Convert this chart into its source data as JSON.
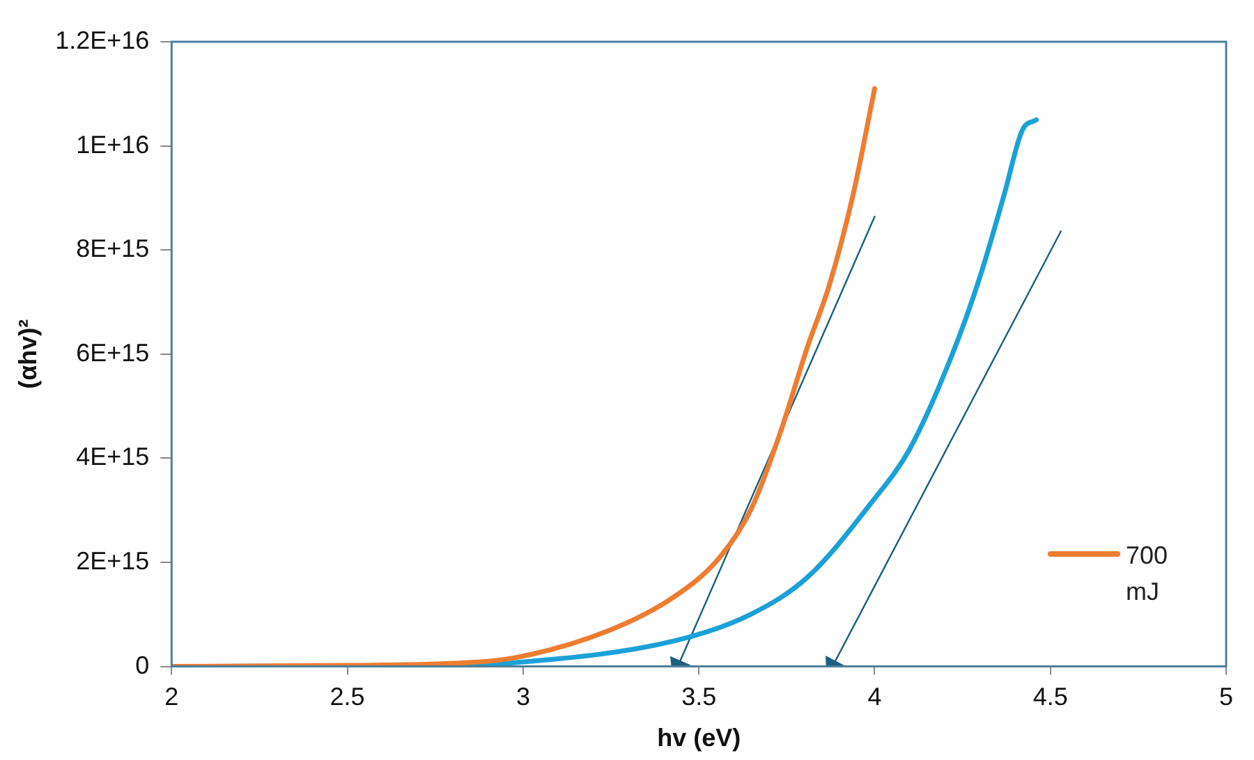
{
  "chart_data": {
    "type": "line",
    "xlabel": "hv (eV)",
    "ylabel": "(αhv)²",
    "xlim": [
      2,
      5
    ],
    "xticks": [
      2,
      2.5,
      3,
      3.5,
      4,
      4.5,
      5
    ],
    "ylim": [
      0,
      1.2e+16
    ],
    "yticks": [
      {
        "value": 0,
        "label": "0"
      },
      {
        "value": 2000000000000000.0,
        "label": "2E+15"
      },
      {
        "value": 4000000000000000.0,
        "label": "4E+15"
      },
      {
        "value": 6000000000000000.0,
        "label": "6E+15"
      },
      {
        "value": 8000000000000000.0,
        "label": "8E+15"
      },
      {
        "value": 1e+16,
        "label": "1E+16"
      },
      {
        "value": 1.2e+16,
        "label": "1.2E+16"
      }
    ],
    "grid": false,
    "legend": "bottom right",
    "marker": "none",
    "series": [
      {
        "name": "700 mJ",
        "color": "#ed7d31",
        "x": [
          2,
          2.5,
          2.8,
          2.97,
          3.24,
          3.43,
          3.56,
          3.65,
          3.73,
          3.81,
          3.87,
          3.94,
          4.0
        ],
        "values": [
          0,
          20000000000000.0,
          60000000000000.0,
          160000000000000.0,
          680000000000000.0,
          1340000000000000.0,
          2100000000000000.0,
          3040000000000000.0,
          4460000000000000.0,
          6160000000000000.0,
          7300000000000000.0,
          9100000000000000.0,
          1.11e+16
        ]
      },
      {
        "color": "#1ba1d8",
        "x": [
          2,
          2.5,
          2.8,
          2.97,
          3.43,
          3.65,
          3.81,
          3.99,
          4.1,
          4.22,
          4.3,
          4.37,
          4.42,
          4.46
        ],
        "values": [
          0,
          10000000000000.0,
          30000000000000.0,
          70000000000000.0,
          490000000000000.0,
          1010000000000000.0,
          1720000000000000.0,
          3140000000000000.0,
          4180000000000000.0,
          5980000000000000.0,
          7490000000000000.0,
          9100000000000000.0,
          1.03e+16,
          1.05e+16
        ]
      },
      {
        "type": "line",
        "color": "#1b5e7f",
        "marker": "triangle",
        "x": [
          4.0,
          3.44
        ],
        "values": [
          8640000000000000.0,
          0
        ]
      },
      {
        "type": "line",
        "color": "#1b5e7f",
        "marker": "triangle",
        "x": [
          4.53,
          3.88
        ],
        "values": [
          8360000000000000.0,
          0
        ]
      }
    ]
  }
}
